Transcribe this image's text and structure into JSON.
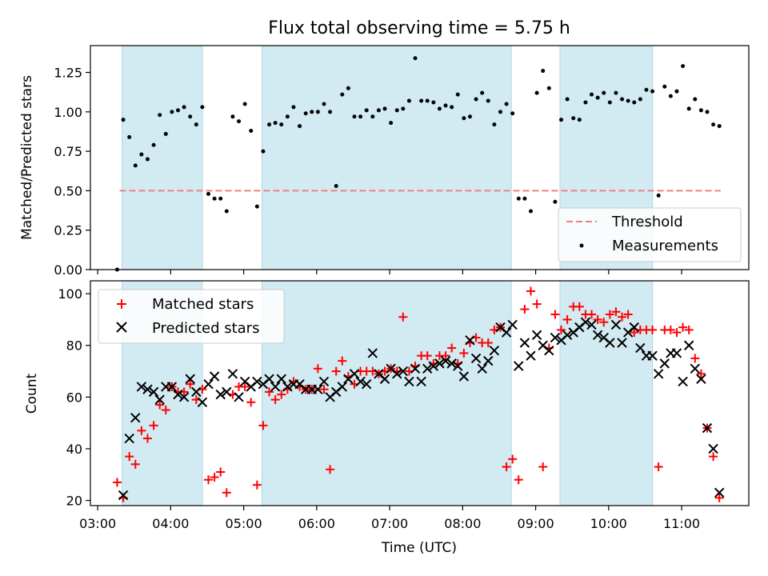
{
  "chart_data": [
    {
      "type": "scatter",
      "title": "Flux total observing time = 5.75 h",
      "xlabel": "",
      "ylabel": "Matched/Predicted stars",
      "ylim": [
        0,
        1.42
      ],
      "yticks": [
        "0.00",
        "0.25",
        "0.50",
        "0.75",
        "1.00",
        "1.25"
      ],
      "xlim_hours": [
        2.9,
        11.92
      ],
      "shaded_intervals": [
        [
          "03:20",
          "04:26"
        ],
        [
          "05:15",
          "08:40"
        ],
        [
          "09:20",
          "10:36"
        ]
      ],
      "shade_color": "#add8e6",
      "legend_position": "lower right",
      "threshold": {
        "name": "Threshold",
        "y": 0.5,
        "x_range": [
          "03:18",
          "11:32"
        ],
        "color": "#f08080"
      },
      "series": [
        {
          "name": "Measurements",
          "color": "#000000",
          "x": [
            "03:16",
            "03:21",
            "03:26",
            "03:31",
            "03:36",
            "03:41",
            "03:46",
            "03:51",
            "03:56",
            "04:01",
            "04:06",
            "04:11",
            "04:16",
            "04:21",
            "04:26",
            "04:31",
            "04:36",
            "04:41",
            "04:46",
            "04:51",
            "04:56",
            "05:01",
            "05:06",
            "05:11",
            "05:16",
            "05:21",
            "05:26",
            "05:31",
            "05:36",
            "05:41",
            "05:46",
            "05:51",
            "05:56",
            "06:01",
            "06:06",
            "06:11",
            "06:16",
            "06:21",
            "06:26",
            "06:31",
            "06:36",
            "06:41",
            "06:46",
            "06:51",
            "06:56",
            "07:01",
            "07:06",
            "07:11",
            "07:16",
            "07:21",
            "07:26",
            "07:31",
            "07:36",
            "07:41",
            "07:46",
            "07:51",
            "07:56",
            "08:01",
            "08:06",
            "08:11",
            "08:16",
            "08:21",
            "08:26",
            "08:31",
            "08:36",
            "08:41",
            "08:46",
            "08:51",
            "08:56",
            "09:01",
            "09:06",
            "09:11",
            "09:16",
            "09:21",
            "09:26",
            "09:31",
            "09:36",
            "09:41",
            "09:46",
            "09:51",
            "09:56",
            "10:01",
            "10:06",
            "10:11",
            "10:16",
            "10:21",
            "10:26",
            "10:31",
            "10:36",
            "10:41",
            "10:46",
            "10:51",
            "10:56",
            "11:01",
            "11:06",
            "11:11",
            "11:16",
            "11:21",
            "11:26",
            "11:31"
          ],
          "y": [
            0.0,
            0.95,
            0.84,
            0.66,
            0.73,
            0.7,
            0.79,
            0.98,
            0.86,
            1.0,
            1.01,
            1.03,
            0.97,
            0.92,
            1.03,
            0.48,
            0.45,
            0.45,
            0.37,
            0.97,
            0.94,
            1.05,
            0.88,
            0.4,
            0.75,
            0.92,
            0.93,
            0.92,
            0.97,
            1.03,
            0.91,
            0.99,
            1.0,
            1.0,
            1.05,
            1.0,
            0.53,
            1.11,
            1.15,
            0.97,
            0.97,
            1.01,
            0.97,
            1.01,
            1.02,
            0.93,
            1.01,
            1.02,
            1.07,
            1.34,
            1.07,
            1.07,
            1.06,
            1.02,
            1.04,
            1.03,
            1.11,
            0.96,
            0.97,
            1.08,
            1.12,
            1.07,
            0.92,
            1.0,
            1.05,
            0.99,
            0.45,
            0.45,
            0.37,
            1.12,
            1.26,
            1.15,
            0.43,
            0.95,
            1.08,
            0.96,
            0.95,
            1.06,
            1.11,
            1.09,
            1.12,
            1.06,
            1.12,
            1.08,
            1.07,
            1.06,
            1.08,
            1.14,
            1.13,
            0.47,
            1.16,
            1.1,
            1.13,
            1.29,
            1.02,
            1.08,
            1.01,
            1.0,
            0.92,
            0.91
          ]
        }
      ]
    },
    {
      "type": "scatter",
      "title": "",
      "xlabel": "Time (UTC)",
      "ylabel": "Count",
      "ylim": [
        18,
        105
      ],
      "yticks": [
        "20",
        "40",
        "60",
        "80",
        "100"
      ],
      "xticks": [
        "03:00",
        "04:00",
        "05:00",
        "06:00",
        "07:00",
        "08:00",
        "09:00",
        "10:00",
        "11:00"
      ],
      "legend_position": "upper left",
      "series": [
        {
          "name": "Matched stars",
          "color": "#ff0000",
          "marker": "+",
          "x": [
            "03:16",
            "03:21",
            "03:26",
            "03:31",
            "03:36",
            "03:41",
            "03:46",
            "03:51",
            "03:56",
            "04:01",
            "04:06",
            "04:11",
            "04:16",
            "04:21",
            "04:26",
            "04:31",
            "04:36",
            "04:41",
            "04:46",
            "04:51",
            "04:56",
            "05:01",
            "05:06",
            "05:11",
            "05:16",
            "05:21",
            "05:26",
            "05:31",
            "05:36",
            "05:41",
            "05:46",
            "05:51",
            "05:56",
            "06:01",
            "06:06",
            "06:11",
            "06:16",
            "06:21",
            "06:26",
            "06:31",
            "06:36",
            "06:41",
            "06:46",
            "06:51",
            "06:56",
            "07:01",
            "07:06",
            "07:11",
            "07:16",
            "07:21",
            "07:26",
            "07:31",
            "07:36",
            "07:41",
            "07:46",
            "07:51",
            "07:56",
            "08:01",
            "08:06",
            "08:11",
            "08:16",
            "08:21",
            "08:26",
            "08:31",
            "08:36",
            "08:41",
            "08:46",
            "08:51",
            "08:56",
            "09:01",
            "09:06",
            "09:11",
            "09:16",
            "09:21",
            "09:26",
            "09:31",
            "09:36",
            "09:41",
            "09:46",
            "09:51",
            "09:56",
            "10:01",
            "10:06",
            "10:11",
            "10:16",
            "10:21",
            "10:26",
            "10:31",
            "10:36",
            "10:41",
            "10:46",
            "10:51",
            "10:56",
            "11:01",
            "11:06",
            "11:11",
            "11:16",
            "11:21",
            "11:26",
            "11:31"
          ],
          "y": [
            27,
            21,
            37,
            34,
            47,
            44,
            49,
            57,
            55,
            64,
            62,
            62,
            65,
            59,
            63,
            28,
            29,
            31,
            23,
            61,
            64,
            64,
            58,
            26,
            49,
            62,
            59,
            61,
            63,
            66,
            64,
            63,
            63,
            71,
            63,
            32,
            70,
            74,
            68,
            65,
            70,
            70,
            70,
            69,
            70,
            71,
            70,
            91,
            70,
            72,
            76,
            76,
            73,
            76,
            76,
            79,
            73,
            77,
            81,
            83,
            81,
            81,
            86,
            87,
            33,
            36,
            28,
            94,
            101,
            96,
            33,
            79,
            92,
            86,
            90,
            95,
            95,
            92,
            92,
            90,
            89,
            92,
            93,
            91,
            92,
            85,
            86,
            86,
            86,
            33,
            86,
            86,
            85,
            87,
            86,
            75,
            69,
            48,
            37,
            21
          ]
        },
        {
          "name": "Predicted stars",
          "color": "#000000",
          "marker": "x",
          "x": [
            "03:21",
            "03:26",
            "03:31",
            "03:36",
            "03:41",
            "03:46",
            "03:51",
            "03:56",
            "04:01",
            "04:06",
            "04:11",
            "04:16",
            "04:21",
            "04:26",
            "04:31",
            "04:36",
            "04:41",
            "04:46",
            "04:51",
            "04:56",
            "05:01",
            "05:06",
            "05:11",
            "05:16",
            "05:21",
            "05:26",
            "05:31",
            "05:36",
            "05:41",
            "05:46",
            "05:51",
            "05:56",
            "06:01",
            "06:06",
            "06:11",
            "06:16",
            "06:21",
            "06:26",
            "06:31",
            "06:36",
            "06:41",
            "06:46",
            "06:51",
            "06:56",
            "07:01",
            "07:06",
            "07:11",
            "07:16",
            "07:21",
            "07:26",
            "07:31",
            "07:36",
            "07:41",
            "07:46",
            "07:51",
            "07:56",
            "08:01",
            "08:06",
            "08:11",
            "08:16",
            "08:21",
            "08:26",
            "08:31",
            "08:36",
            "08:41",
            "08:46",
            "08:51",
            "08:56",
            "09:01",
            "09:06",
            "09:11",
            "09:16",
            "09:21",
            "09:26",
            "09:31",
            "09:36",
            "09:41",
            "09:46",
            "09:51",
            "09:56",
            "10:01",
            "10:06",
            "10:11",
            "10:16",
            "10:21",
            "10:26",
            "10:31",
            "10:36",
            "10:41",
            "10:46",
            "10:51",
            "10:56",
            "11:01",
            "11:06",
            "11:11",
            "11:16",
            "11:21",
            "11:26",
            "11:31"
          ],
          "y": [
            22,
            44,
            52,
            64,
            63,
            62,
            59,
            64,
            64,
            61,
            60,
            67,
            62,
            58,
            65,
            68,
            61,
            62,
            69,
            60,
            66,
            64,
            66,
            65,
            67,
            64,
            67,
            64,
            65,
            65,
            63,
            63,
            63,
            66,
            60,
            62,
            64,
            67,
            69,
            66,
            65,
            77,
            69,
            67,
            71,
            69,
            70,
            66,
            71,
            66,
            71,
            72,
            73,
            74,
            73,
            72,
            68,
            82,
            75,
            71,
            74,
            78,
            87,
            85,
            88,
            72,
            81,
            76,
            84,
            80,
            78,
            83,
            82,
            84,
            85,
            87,
            89,
            88,
            84,
            83,
            81,
            88,
            81,
            85,
            87,
            79,
            76,
            76,
            69,
            73,
            77,
            77,
            66,
            80,
            71,
            67,
            48,
            40,
            23
          ]
        }
      ]
    }
  ]
}
